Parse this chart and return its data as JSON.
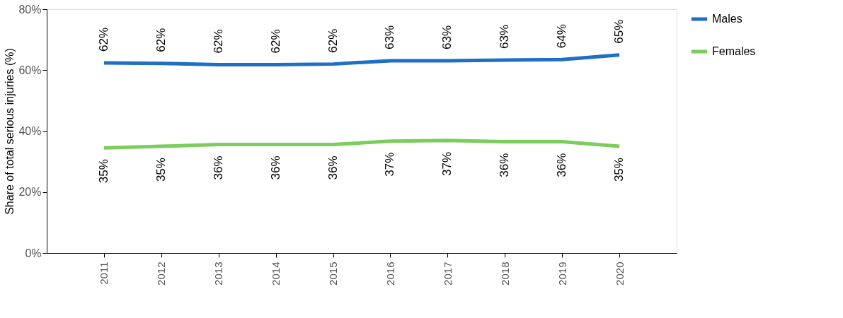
{
  "chart_data": {
    "type": "line",
    "ylabel": "Share of total serious injuries (%)",
    "categories": [
      "2011",
      "2012",
      "2013",
      "2014",
      "2015",
      "2016",
      "2017",
      "2018",
      "2019",
      "2020"
    ],
    "series": [
      {
        "name": "Males",
        "color": "#1f6fc6",
        "values": [
          62.4,
          62.2,
          61.8,
          61.8,
          62.0,
          63.1,
          63.1,
          63.3,
          63.5,
          65.0
        ],
        "value_labels": [
          "62%",
          "62%",
          "62%",
          "62%",
          "62%",
          "63%",
          "63%",
          "63%",
          "64%",
          "65%"
        ]
      },
      {
        "name": "Females",
        "color": "#7ccc5e",
        "values": [
          34.5,
          35.0,
          35.6,
          35.6,
          35.6,
          36.7,
          36.9,
          36.5,
          36.5,
          35.0
        ],
        "value_labels": [
          "35%",
          "35%",
          "36%",
          "36%",
          "36%",
          "37%",
          "37%",
          "36%",
          "36%",
          "35%"
        ]
      }
    ],
    "ylim": [
      0,
      80
    ],
    "yticks": [
      {
        "value": 0,
        "label": "0%"
      },
      {
        "value": 20,
        "label": "20%"
      },
      {
        "value": 40,
        "label": "40%"
      },
      {
        "value": 60,
        "label": "60%"
      },
      {
        "value": 80,
        "label": "80%"
      }
    ],
    "grid": false,
    "legend": "right",
    "marker": "none",
    "line_style": "solid"
  }
}
